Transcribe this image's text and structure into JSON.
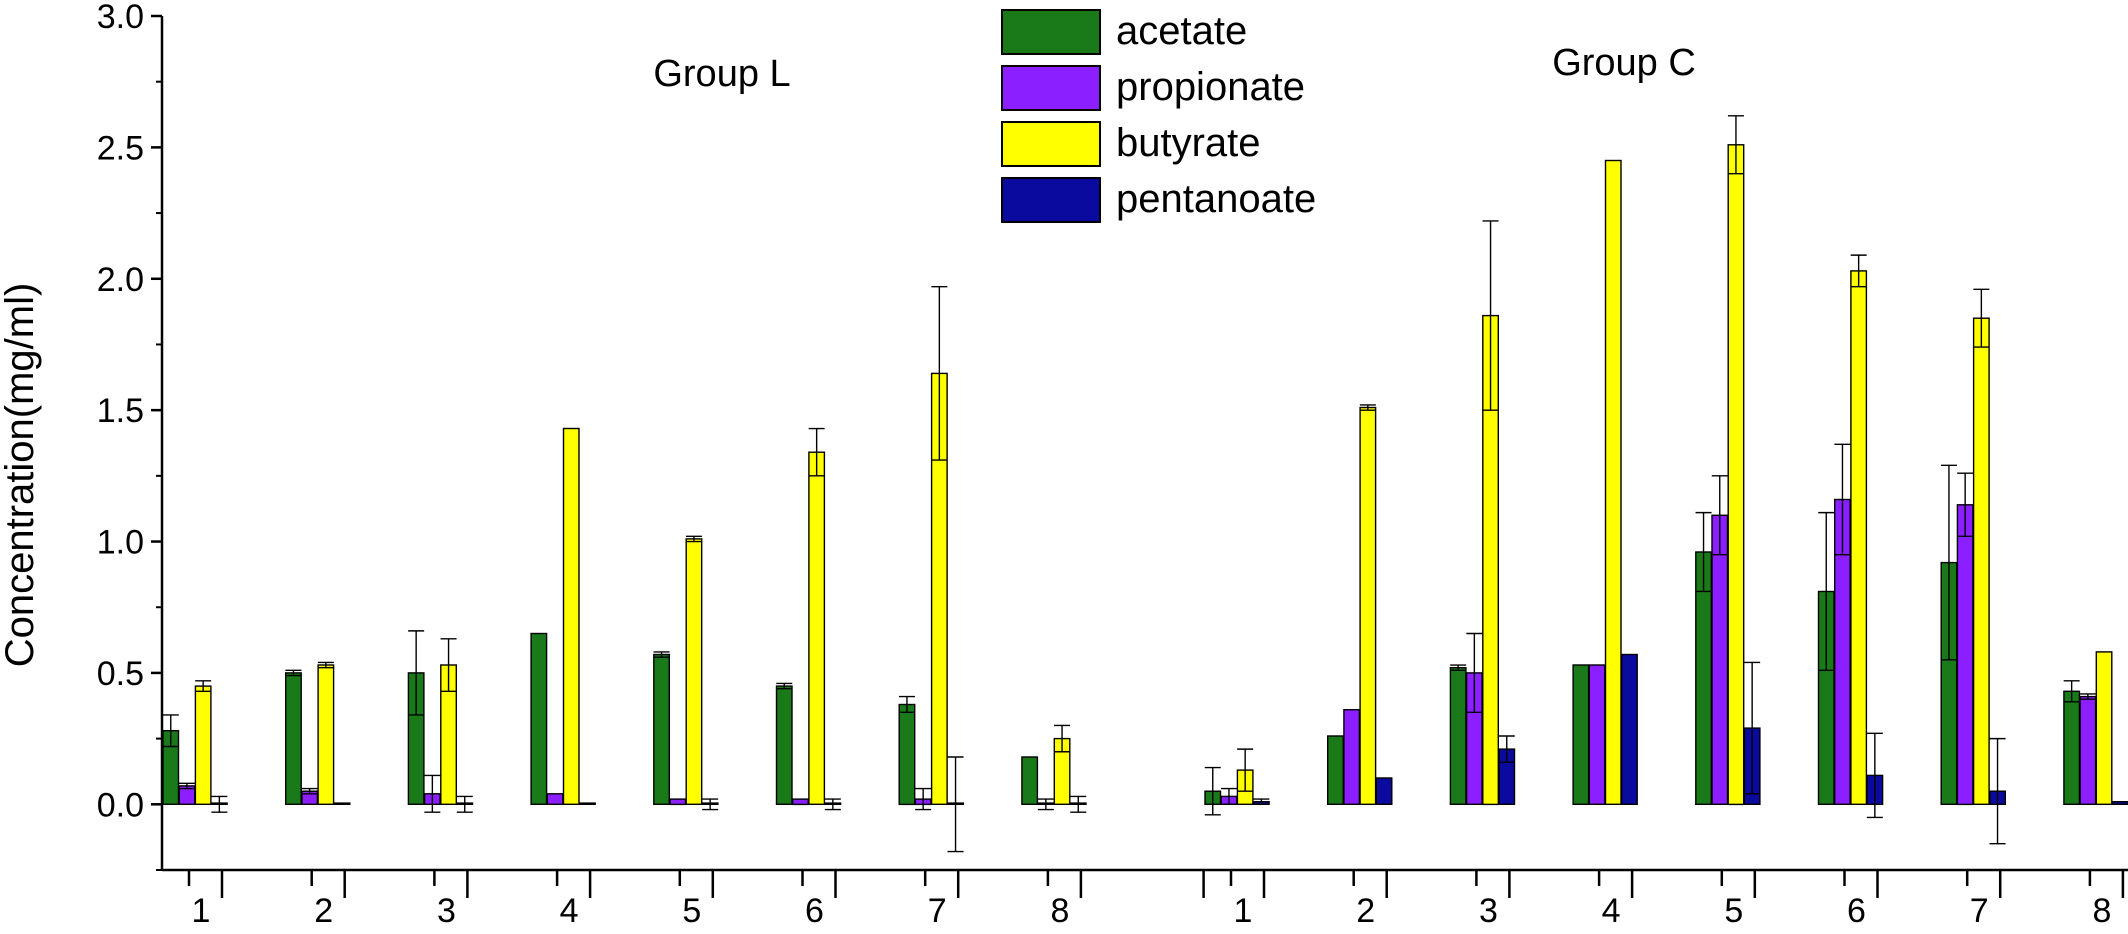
{
  "chart_data": {
    "type": "bar",
    "ylabel": "Concentration(mg/ml)",
    "ylim": [
      -0.25,
      3.0
    ],
    "yticks": [
      "0.0",
      "0.5",
      "1.0",
      "1.5",
      "2.0",
      "2.5",
      "3.0"
    ],
    "legend_position": "top-center",
    "groups": [
      {
        "name": "Group L",
        "categories": [
          "1",
          "2",
          "3",
          "4",
          "5",
          "6",
          "7",
          "8"
        ],
        "series": [
          {
            "name": "acetate",
            "color": "#1a7a1a",
            "values": [
              0.28,
              0.5,
              0.5,
              0.65,
              0.57,
              0.45,
              0.38,
              0.18
            ],
            "errors": [
              0.06,
              0.01,
              0.16,
              0.0,
              0.01,
              0.01,
              0.03,
              0.0
            ]
          },
          {
            "name": "propionate",
            "color": "#8b1fff",
            "values": [
              0.07,
              0.05,
              0.04,
              0.04,
              0.02,
              0.02,
              0.02,
              0.0
            ],
            "errors": [
              0.01,
              0.01,
              0.07,
              0.0,
              0.0,
              0.0,
              0.04,
              0.02
            ]
          },
          {
            "name": "butyrate",
            "color": "#ffff00",
            "values": [
              0.45,
              0.53,
              0.53,
              1.43,
              1.01,
              1.34,
              1.64,
              0.25
            ],
            "errors": [
              0.02,
              0.01,
              0.1,
              0.0,
              0.01,
              0.09,
              0.33,
              0.05
            ]
          },
          {
            "name": "pentanoate",
            "color": "#0a0a9e",
            "values": [
              0.0,
              0.0,
              0.0,
              0.0,
              0.0,
              0.0,
              0.0,
              0.0
            ],
            "errors": [
              0.03,
              0.0,
              0.03,
              0.0,
              0.02,
              0.02,
              0.18,
              0.03
            ]
          }
        ]
      },
      {
        "name": "Group C",
        "categories": [
          "1",
          "2",
          "3",
          "4",
          "5",
          "6",
          "7",
          "8"
        ],
        "series": [
          {
            "name": "acetate",
            "color": "#1a7a1a",
            "values": [
              0.05,
              0.26,
              0.52,
              0.53,
              0.96,
              0.81,
              0.92,
              0.43
            ],
            "errors": [
              0.09,
              0.0,
              0.01,
              0.0,
              0.15,
              0.3,
              0.37,
              0.04
            ]
          },
          {
            "name": "propionate",
            "color": "#8b1fff",
            "values": [
              0.03,
              0.36,
              0.5,
              0.53,
              1.1,
              1.16,
              1.14,
              0.41
            ],
            "errors": [
              0.03,
              0.0,
              0.15,
              0.0,
              0.15,
              0.21,
              0.12,
              0.01
            ]
          },
          {
            "name": "butyrate",
            "color": "#ffff00",
            "values": [
              0.13,
              1.51,
              1.86,
              2.45,
              2.51,
              2.03,
              1.85,
              0.58
            ],
            "errors": [
              0.08,
              0.01,
              0.36,
              0.0,
              0.11,
              0.06,
              0.11,
              0.0
            ]
          },
          {
            "name": "pentanoate",
            "color": "#0a0a9e",
            "values": [
              0.01,
              0.1,
              0.21,
              0.57,
              0.29,
              0.11,
              0.05,
              0.01
            ],
            "errors": [
              0.01,
              0.0,
              0.05,
              0.0,
              0.25,
              0.16,
              0.2,
              0.0
            ]
          }
        ]
      }
    ]
  }
}
